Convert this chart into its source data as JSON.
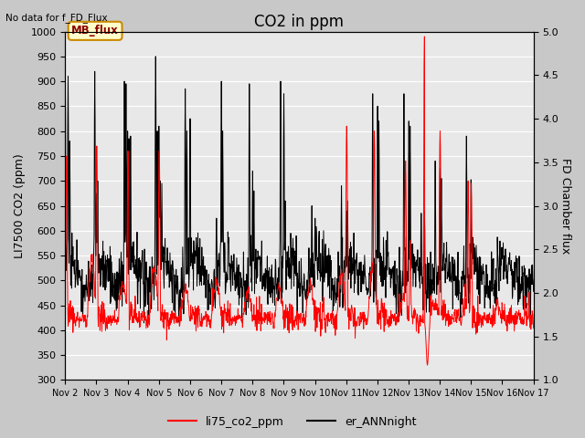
{
  "title": "CO2 in ppm",
  "top_left_text": "No data for f_FD_Flux",
  "ylabel_left": "LI7500 CO2 (ppm)",
  "ylabel_right": "FD Chamber flux",
  "ylim_left": [
    300,
    1000
  ],
  "ylim_right": [
    1.0,
    5.0
  ],
  "yticks_left": [
    300,
    350,
    400,
    450,
    500,
    550,
    600,
    650,
    700,
    750,
    800,
    850,
    900,
    950,
    1000
  ],
  "yticks_right": [
    1.0,
    1.5,
    2.0,
    2.5,
    3.0,
    3.5,
    4.0,
    4.5,
    5.0
  ],
  "xtick_labels": [
    "Nov 2",
    "Nov 3",
    "Nov 4",
    "Nov 5",
    "Nov 6",
    "Nov 7",
    "Nov 8",
    "Nov 9",
    "Nov 10",
    "Nov 11",
    "Nov 12",
    "Nov 13",
    "Nov 14",
    "Nov 15",
    "Nov 16",
    "Nov 17"
  ],
  "legend_labels": [
    "li75_co2_ppm",
    "er_ANNnight"
  ],
  "legend_colors": [
    "red",
    "black"
  ],
  "line_red_color": "red",
  "line_black_color": "black",
  "plot_bg_color": "#e8e8e8",
  "fig_bg_color": "#c8c8c8",
  "grid_color": "white",
  "mb_flux_box_color": "#ffffcc",
  "mb_flux_box_edge": "#cc8800",
  "mb_flux_text": "MB_flux",
  "title_fontsize": 12,
  "label_fontsize": 9,
  "tick_fontsize": 8
}
